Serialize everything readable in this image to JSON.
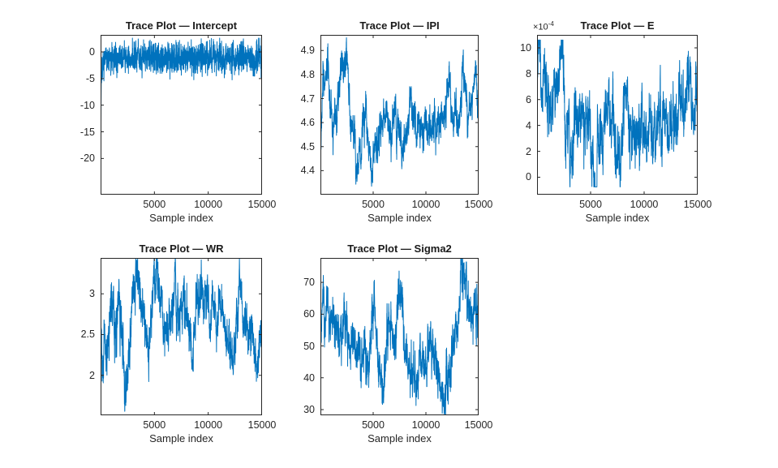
{
  "figure": {
    "kind": "matlab-trace-plot-figure",
    "colors": {
      "line": "#0072BD",
      "axis": "#262626",
      "tick_label": "#262626",
      "title": "#1a1a1a",
      "background": "#ffffff"
    }
  },
  "chart_data": [
    {
      "type": "line",
      "title": "Trace Plot — Intercept",
      "series_name": "Intercept",
      "xlabel": "Sample index",
      "xlim": [
        0,
        15000
      ],
      "xticks": [
        5000,
        10000,
        15000
      ],
      "ylim": [
        -26.8,
        3.2
      ],
      "yticks": [
        0,
        -5,
        -10,
        -15,
        -20
      ],
      "y_multiplier": null,
      "grid": false,
      "legend": null,
      "n_samples": 15000,
      "trace": {
        "description": "stationary band around -1 with burn-in spike from bottom of axis at x=0",
        "keyframes_x": [
          0,
          60,
          200,
          2500,
          5500,
          6200,
          7000,
          9500,
          12000,
          15000
        ],
        "keyframes_y": [
          -26.5,
          -4.5,
          -1.1,
          -1.2,
          -0.85,
          -1.35,
          -1.0,
          -1.2,
          -1.0,
          -1.15
        ],
        "ar": 0.25,
        "noise_sd": 1.3,
        "jitter_sd": 0.45,
        "clip": [
          -26.7,
          2.6
        ],
        "seed": 3,
        "render_points": 1700
      }
    },
    {
      "type": "line",
      "title": "Trace Plot — IPI",
      "series_name": "IPI",
      "xlabel": "Sample index",
      "xlim": [
        0,
        15000
      ],
      "xticks": [
        5000,
        10000,
        15000
      ],
      "ylim": [
        4.3,
        4.965
      ],
      "yticks": [
        4.9,
        4.8,
        4.7,
        4.6,
        4.5,
        4.4
      ],
      "y_multiplier": null,
      "grid": false,
      "legend": null,
      "n_samples": 15000,
      "trace": {
        "description": "slow wander between 4.35 and 4.95, mean about 4.62",
        "keyframes_x": [
          0,
          250,
          700,
          1100,
          1600,
          2100,
          2450,
          2800,
          3200,
          3700,
          4100,
          4600,
          5100,
          5400,
          5800,
          6300,
          6800,
          7200,
          7700,
          8200,
          8500,
          8900,
          9400,
          9900,
          10400,
          10900,
          11400,
          11900,
          12300,
          12700,
          13100,
          13500,
          13900,
          14300,
          14700,
          15000
        ],
        "keyframes_y": [
          4.43,
          4.72,
          4.88,
          4.68,
          4.64,
          4.85,
          4.91,
          4.62,
          4.5,
          4.44,
          4.58,
          4.45,
          4.42,
          4.52,
          4.6,
          4.64,
          4.55,
          4.62,
          4.5,
          4.62,
          4.78,
          4.58,
          4.56,
          4.62,
          4.52,
          4.56,
          4.6,
          4.72,
          4.82,
          4.63,
          4.58,
          4.82,
          4.64,
          4.72,
          4.76,
          4.62
        ],
        "ar": 0.9,
        "noise_sd": 0.022,
        "jitter_sd": 0.02,
        "clip": [
          4.315,
          4.955
        ],
        "seed": 7,
        "render_points": 1600
      }
    },
    {
      "type": "line",
      "title": "Trace Plot — E",
      "series_name": "E",
      "xlabel": "Sample index",
      "xlim": [
        0,
        15000
      ],
      "xticks": [
        5000,
        10000,
        15000
      ],
      "ylim": [
        -1.35,
        11.0
      ],
      "yticks": [
        10,
        8,
        6,
        4,
        2,
        0
      ],
      "y_multiplier": {
        "base": "×10",
        "exp": "-4"
      },
      "grid": false,
      "legend": null,
      "n_samples": 15000,
      "trace": {
        "description": "values in units of 1e-4; wander 0 to 10 with early spike to 10.6 and dips below 0 near x=3300 and 5300",
        "keyframes_x": [
          0,
          180,
          420,
          800,
          1200,
          1600,
          2000,
          2350,
          2700,
          3100,
          3400,
          3800,
          4200,
          4700,
          5100,
          5400,
          5800,
          6200,
          6600,
          7000,
          7400,
          7800,
          8200,
          8600,
          9000,
          9400,
          9800,
          10200,
          10600,
          11000,
          11400,
          11800,
          12200,
          12600,
          13000,
          13400,
          13800,
          14200,
          14600,
          15000
        ],
        "keyframes_y": [
          7.5,
          10.2,
          4.8,
          6.8,
          4.2,
          7.4,
          6.2,
          8.9,
          4.4,
          1.0,
          2.6,
          5.2,
          4.4,
          5.6,
          1.6,
          0.2,
          3.6,
          3.9,
          5.4,
          4.4,
          2.8,
          1.6,
          7.6,
          3.9,
          4.6,
          3.2,
          4.1,
          3.3,
          4.6,
          3.4,
          4.4,
          5.4,
          5.0,
          4.1,
          4.8,
          5.8,
          5.0,
          6.4,
          5.8,
          5.2
        ],
        "ar": 0.82,
        "noise_sd": 0.75,
        "jitter_sd": 0.5,
        "clip": [
          -0.75,
          10.6
        ],
        "seed": 13,
        "render_points": 1600
      }
    },
    {
      "type": "line",
      "title": "Trace Plot — WR",
      "series_name": "WR",
      "xlabel": "Sample index",
      "xlim": [
        0,
        15000
      ],
      "xticks": [
        5000,
        10000,
        15000
      ],
      "ylim": [
        1.51,
        3.44
      ],
      "yticks": [
        3,
        2.5,
        2
      ],
      "y_multiplier": null,
      "grid": false,
      "legend": null,
      "n_samples": 15000,
      "trace": {
        "description": "wander 1.55 to 3.45 around mean 2.6 with deep early dips near x=300 and x=2400",
        "keyframes_x": [
          0,
          150,
          350,
          600,
          900,
          1150,
          1400,
          1700,
          2000,
          2250,
          2550,
          2800,
          3100,
          3400,
          3700,
          4000,
          4300,
          4600,
          4900,
          5200,
          5500,
          5800,
          6100,
          6500,
          6900,
          7300,
          7700,
          8100,
          8500,
          8900,
          9300,
          9700,
          10100,
          10500,
          10900,
          11300,
          11700,
          12100,
          12500,
          12900,
          13300,
          13700,
          14100,
          14500,
          14800,
          15000
        ],
        "keyframes_y": [
          2.6,
          1.75,
          2.45,
          2.3,
          2.85,
          2.9,
          2.35,
          3.0,
          2.45,
          1.7,
          2.15,
          2.5,
          3.15,
          3.3,
          2.85,
          2.7,
          2.4,
          2.55,
          3.1,
          3.35,
          2.9,
          2.7,
          2.62,
          2.55,
          3.15,
          2.65,
          3.05,
          2.6,
          2.15,
          2.9,
          2.85,
          2.95,
          2.7,
          2.8,
          2.75,
          2.9,
          2.45,
          2.35,
          2.42,
          2.9,
          2.6,
          2.4,
          2.48,
          2.05,
          2.45,
          2.4
        ],
        "ar": 0.8,
        "noise_sd": 0.09,
        "jitter_sd": 0.075,
        "clip": [
          1.55,
          3.43
        ],
        "seed": 5,
        "render_points": 1600
      }
    },
    {
      "type": "line",
      "title": "Trace Plot — Sigma2",
      "series_name": "Sigma2",
      "xlabel": "Sample index",
      "xlim": [
        0,
        15000
      ],
      "xticks": [
        5000,
        10000,
        15000
      ],
      "ylim": [
        28.2,
        77.7
      ],
      "yticks": [
        70,
        60,
        50,
        40,
        30
      ],
      "y_multiplier": null,
      "grid": false,
      "legend": null,
      "n_samples": 15000,
      "trace": {
        "description": "wander 28 to 78; high at start, low middle near x=6000-12000, peak about 78 near x=13500",
        "keyframes_x": [
          0,
          180,
          420,
          700,
          950,
          1200,
          1500,
          1800,
          2100,
          2400,
          2700,
          3000,
          3300,
          3600,
          3900,
          4200,
          4500,
          4800,
          5100,
          5400,
          5700,
          6000,
          6300,
          6700,
          7000,
          7300,
          7600,
          7900,
          8200,
          8500,
          8800,
          9100,
          9400,
          9700,
          10000,
          10300,
          10600,
          10900,
          11200,
          11500,
          11800,
          12100,
          12400,
          12800,
          13100,
          13400,
          13700,
          14000,
          14300,
          14600,
          14900,
          15000
        ],
        "keyframes_y": [
          48,
          66,
          57,
          67,
          55,
          61,
          59,
          50,
          57,
          60,
          52,
          50,
          47,
          50,
          45,
          52,
          42,
          55,
          66,
          46,
          40,
          37,
          54,
          60,
          50,
          61,
          67,
          55,
          49,
          45,
          42,
          39,
          45,
          47,
          42,
          50,
          52,
          49,
          44,
          32,
          38,
          41,
          43,
          55,
          58,
          73,
          70,
          61,
          57,
          65,
          61,
          45
        ],
        "ar": 0.8,
        "noise_sd": 2.2,
        "jitter_sd": 1.7,
        "clip": [
          28.5,
          77.5
        ],
        "seed": 9,
        "render_points": 1600
      }
    }
  ]
}
